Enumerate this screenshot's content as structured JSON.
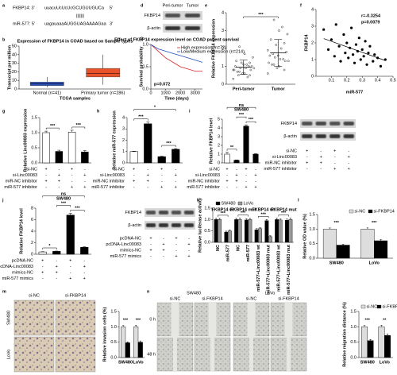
{
  "panel_labels": [
    "a",
    "b",
    "c",
    "d",
    "e",
    "f",
    "g",
    "h",
    "i",
    "j",
    "k",
    "l",
    "m",
    "n"
  ],
  "panel_a": {
    "lines": [
      {
        "label": "FKBP14: 3'",
        "sequence": "uuacuUcUcUcGCUGUUGUCa",
        "end": "5'",
        "color": "#1f5fbf"
      },
      {
        "label": "miR-577: 5'",
        "sequence": "uagauaaaAUGGUAGAAAAGaa",
        "end": "3'",
        "color": "#d2461e"
      }
    ],
    "pairing": "|||||||"
  },
  "blot_d": {
    "columns": [
      "Peri-tumor",
      "Tumor"
    ],
    "rows": [
      "FKBP14",
      "β-actin"
    ]
  },
  "blot_i": {
    "rows": [
      "FKBP14",
      "β-actin"
    ],
    "conditions": [
      {
        "name": "si-NC",
        "signs": [
          "+",
          "-",
          "+",
          "-"
        ]
      },
      {
        "name": "si-Linc00083",
        "signs": [
          "-",
          "+",
          "-",
          "+"
        ]
      },
      {
        "name": "miR-NC inhibitor",
        "signs": [
          "+",
          "+",
          "-",
          "-"
        ]
      },
      {
        "name": "miR-577 inhibitor",
        "signs": [
          "-",
          "-",
          "+",
          "+"
        ]
      }
    ]
  },
  "blot_j": {
    "rows": [
      "FKBP14",
      "β-actin"
    ],
    "conditions": [
      {
        "name": "pcDNA-NC",
        "signs": [
          "+",
          "-",
          "+",
          "-"
        ]
      },
      {
        "name": "pcDNA-Linc00083",
        "signs": [
          "-",
          "+",
          "-",
          "+"
        ]
      },
      {
        "name": "mimics-NC",
        "signs": [
          "+",
          "+",
          "-",
          "-"
        ]
      },
      {
        "name": "miR-577 mimics",
        "signs": [
          "-",
          "-",
          "+",
          "+"
        ]
      }
    ]
  },
  "panel_m": {
    "columns": [
      "si-NC",
      "si-FKBP14"
    ],
    "rows": [
      "SW480",
      "LoVo"
    ]
  },
  "panel_n": {
    "groups": [
      "SW480",
      "LoVo"
    ],
    "columns": [
      "si-NC",
      "si-FKBP14",
      "si-NC",
      "si-FKBP14"
    ],
    "rows": [
      "0 h",
      "48 h"
    ]
  },
  "chart_data": [
    {
      "type": "box",
      "title": "Expression of FKBP14 in COAD based on Sample types",
      "xlabel": "TCGA samples",
      "ylabel": "Transcript per million",
      "categories": [
        "Normal (n=41)",
        "Primary tumor (n=286)"
      ],
      "boxes": [
        {
          "min": 2,
          "q1": 4,
          "median": 6,
          "q3": 8,
          "max": 14
        },
        {
          "min": 5,
          "q1": 14,
          "median": 18,
          "q3": 24,
          "max": 40
        }
      ],
      "colors": [
        "#2a52be",
        "#e8532b"
      ],
      "ylim": [
        0,
        50
      ],
      "yticks": [
        0,
        10,
        20,
        30,
        40,
        50
      ]
    },
    {
      "type": "line",
      "title": "Effect of FKBP14 expression level on COAD patient survival",
      "xlabel": "Time (days)",
      "ylabel": "Survival probability",
      "x": [
        0,
        500,
        1000,
        1500,
        2000,
        2500,
        3000,
        3500
      ],
      "series": [
        {
          "name": "High expression (n=72)",
          "color": "#d62728",
          "values": [
            1,
            0.85,
            0.7,
            0.6,
            0.5,
            0.45,
            0.4,
            0.4
          ]
        },
        {
          "name": "Low/Medium expression (n=214)",
          "color": "#1f4fbf",
          "values": [
            1,
            0.9,
            0.85,
            0.8,
            0.75,
            0.7,
            0.65,
            0.6
          ]
        }
      ],
      "annotations": [
        "p=0.072"
      ],
      "xlim": [
        0,
        3500
      ],
      "xticks": [
        0,
        1000,
        2000,
        3000
      ],
      "ylim": [
        0,
        1
      ],
      "yticks": [
        {
          "value": 0,
          "label": "0.0"
        },
        0.5,
        {
          "value": 1,
          "label": "1.0"
        }
      ]
    },
    {
      "type": "strip",
      "ylabel": "Relative FKBP14 expression",
      "categories": [
        "Peri-tumor",
        "Tumor"
      ],
      "series": [
        {
          "name": "Peri-tumor",
          "color": "#000000",
          "values": [
            0.3,
            0.5,
            0.6,
            0.7,
            0.8,
            0.8,
            0.9,
            0.9,
            1.0,
            1.0,
            1.1,
            1.2,
            1.3,
            1.5,
            0.4,
            0.6,
            0.7,
            0.9,
            1.0,
            1.1,
            0.5,
            0.8,
            1.2,
            1.7,
            2.1
          ]
        },
        {
          "name": "Tumor",
          "color": "#000000",
          "values": [
            0.6,
            0.8,
            1.0,
            1.1,
            1.2,
            1.3,
            1.4,
            1.5,
            1.6,
            1.8,
            2.0,
            2.2,
            2.5,
            2.8,
            3.2,
            0.9,
            1.1,
            1.3,
            1.4,
            1.6,
            1.7,
            1.9,
            2.3,
            3.0,
            3.6
          ]
        }
      ],
      "means": [
        0.95,
        1.75
      ],
      "sds": [
        0.4,
        0.75
      ],
      "annotations": [
        "***"
      ],
      "ylim": [
        0,
        4
      ],
      "yticks": [
        0,
        1,
        2,
        3,
        4
      ]
    },
    {
      "type": "scatter",
      "xlabel": "miR-577",
      "ylabel": "FKBP14",
      "color": "#000000",
      "x": [
        0.05,
        0.08,
        0.1,
        0.12,
        0.13,
        0.15,
        0.16,
        0.18,
        0.19,
        0.2,
        0.21,
        0.22,
        0.23,
        0.24,
        0.25,
        0.26,
        0.27,
        0.28,
        0.29,
        0.3,
        0.31,
        0.32,
        0.33,
        0.34,
        0.35,
        0.37,
        0.38,
        0.4,
        0.42,
        0.45
      ],
      "y": [
        2.8,
        1.6,
        2.2,
        1.2,
        3.1,
        1.8,
        0.9,
        2.5,
        1.4,
        2.0,
        1.1,
        1.7,
        2.9,
        1.3,
        0.8,
        1.9,
        1.5,
        2.3,
        1.0,
        1.6,
        1.2,
        2.1,
        0.7,
        1.4,
        1.8,
        0.9,
        1.3,
        1.1,
        0.6,
        1.0
      ],
      "annotations": [
        "r=-0.3254",
        "p=0.0079"
      ],
      "xlim": [
        0,
        0.5
      ],
      "xticks": [
        0.1,
        0.2,
        0.3,
        0.4,
        0.5
      ],
      "ylim": [
        0,
        4
      ],
      "yticks": [
        0,
        1,
        2,
        3,
        4
      ]
    },
    {
      "type": "bar",
      "ylabel": "Relative Linc00083 expression",
      "values": [
        1.0,
        0.38,
        1.02,
        0.36
      ],
      "errors": [
        0.05,
        0.04,
        0.06,
        0.05
      ],
      "colors": [
        "#ffffff",
        "#000000",
        "#ffffff",
        "#000000"
      ],
      "annotations": [
        "***",
        "***"
      ],
      "conditions": [
        {
          "name": "si-NC",
          "signs": [
            "+",
            "-",
            "+",
            "-"
          ]
        },
        {
          "name": "si-Linc00083",
          "signs": [
            "-",
            "+",
            "-",
            "+"
          ]
        },
        {
          "name": "miR-NC inhibitor",
          "signs": [
            "+",
            "+",
            "-",
            "-"
          ]
        },
        {
          "name": "miR-577 inhibitor",
          "signs": [
            "-",
            "-",
            "+",
            "+"
          ]
        }
      ],
      "ylim": [
        0,
        1.5
      ],
      "yticks": [
        {
          "value": 0,
          "label": "0.0"
        },
        0.5,
        {
          "value": 1,
          "label": "1.0"
        },
        1.5
      ]
    },
    {
      "type": "bar",
      "ylabel": "Relative miR-577 expression",
      "values": [
        1.0,
        3.45,
        0.55,
        1.2
      ],
      "errors": [
        0.03,
        0.15,
        0.04,
        0.06
      ],
      "colors": [
        "#ffffff",
        "#000000",
        "#000000",
        "#000000"
      ],
      "annotations": [
        "*",
        "***",
        "***"
      ],
      "conditions": [
        {
          "name": "si-NC",
          "signs": [
            "+",
            "-",
            "+",
            "-"
          ]
        },
        {
          "name": "si-Linc00083",
          "signs": [
            "-",
            "+",
            "-",
            "+"
          ]
        },
        {
          "name": "miR-NC inhibitor",
          "signs": [
            "+",
            "+",
            "-",
            "-"
          ]
        },
        {
          "name": "miR-577 inhibitor",
          "signs": [
            "-",
            "-",
            "+",
            "+"
          ]
        }
      ],
      "ylim": [
        0,
        4
      ],
      "yticks": [
        0,
        1,
        2,
        3,
        4
      ]
    },
    {
      "type": "bar",
      "title": "SW480",
      "ylabel": "Relative FKBP14 level",
      "values": [
        1.0,
        0.3,
        4.2,
        1.0
      ],
      "errors": [
        0.2,
        0.03,
        0.15,
        0.05
      ],
      "colors": [
        "#ffffff",
        "#000000",
        "#000000",
        "#000000"
      ],
      "annotations": [
        "ns",
        "***",
        "**",
        "***"
      ],
      "conditions": [
        {
          "name": "si-NC",
          "signs": [
            "+",
            "-",
            "+",
            "-"
          ]
        },
        {
          "name": "si-Linc00083",
          "signs": [
            "-",
            "+",
            "-",
            "+"
          ]
        },
        {
          "name": "miR-NC inhibitor",
          "signs": [
            "+",
            "+",
            "-",
            "-"
          ]
        },
        {
          "name": "miR-577 inhibitor",
          "signs": [
            "-",
            "-",
            "+",
            "+"
          ]
        }
      ],
      "ylim": [
        0,
        5
      ],
      "yticks": [
        0,
        1,
        2,
        3,
        4,
        5
      ]
    },
    {
      "type": "bar",
      "title": "SW480",
      "ylabel": "Relative FKBP14 level",
      "values": [
        0.4,
        0.5,
        6.8,
        1.2
      ],
      "errors": [
        0.05,
        0.05,
        0.3,
        0.1
      ],
      "colors": [
        "#ffffff",
        "#000000",
        "#000000",
        "#000000"
      ],
      "annotations": [
        "ns",
        "***",
        "*",
        "***"
      ],
      "conditions": [
        {
          "name": "pcDNA-NC",
          "signs": [
            "+",
            "-",
            "+",
            "-"
          ]
        },
        {
          "name": "pcDNA-Linc00083",
          "signs": [
            "-",
            "+",
            "-",
            "+"
          ]
        },
        {
          "name": "mimics-NC",
          "signs": [
            "+",
            "+",
            "-",
            "-"
          ]
        },
        {
          "name": "miR-577 mimics",
          "signs": [
            "-",
            "-",
            "+",
            "+"
          ]
        }
      ],
      "ylim": [
        0,
        8
      ],
      "yticks": [
        0,
        2,
        4,
        6,
        8
      ]
    },
    {
      "type": "grouped",
      "ylabel": "Relative luciferase activity",
      "legend": true,
      "groups": [
        "FKBP14 wt",
        "FKBP14 mut",
        "FKBP14 wt",
        "FKBP14 mut"
      ],
      "categories": [
        "NC",
        "miR-577",
        "NC",
        "miR-577",
        "miR-577+Linc00083 wt",
        "miR-577+Linc00083 mut",
        "miR-577+Linc00083 wt",
        "miR-577+Linc00083 mut"
      ],
      "series": [
        {
          "name": "SW480",
          "color": "#000000",
          "values": [
            1.0,
            0.45,
            1.0,
            0.98,
            0.55,
            0.95,
            1.0,
            0.97
          ],
          "errors": [
            0.05,
            0.04,
            0.05,
            0.06,
            0.05,
            0.05,
            0.06,
            0.05
          ]
        },
        {
          "name": "LoVo",
          "color": "#9a9a9a",
          "values": [
            1.0,
            0.5,
            1.0,
            1.0,
            0.6,
            0.25,
            0.98,
            1.0
          ],
          "errors": [
            0.05,
            0.05,
            0.06,
            0.05,
            0.05,
            0.04,
            0.05,
            0.06
          ]
        }
      ],
      "annotations": [
        "***",
        "***",
        "***",
        "***"
      ],
      "ylim": [
        0,
        1.5
      ],
      "yticks": [
        {
          "value": 0,
          "label": "0.0"
        },
        0.5,
        {
          "value": 1,
          "label": "1.0"
        },
        1.5
      ]
    },
    {
      "type": "grouped",
      "ylabel": "Relative OD value (%)",
      "legend": true,
      "categories": [
        "SW480",
        "LoVo"
      ],
      "series": [
        {
          "name": "si-NC",
          "color": "#dddddd",
          "values": [
            1.0,
            1.0
          ],
          "errors": [
            0.04,
            0.04
          ]
        },
        {
          "name": "si-FKBP14",
          "color": "#000000",
          "values": [
            0.45,
            0.6
          ],
          "errors": [
            0.03,
            0.04
          ]
        }
      ],
      "annotations": [
        "***",
        "***"
      ],
      "ylim": [
        0,
        1.5
      ],
      "yticks": [
        {
          "value": 0,
          "label": "0.0"
        },
        0.5,
        {
          "value": 1,
          "label": "1.0"
        },
        1.5
      ]
    },
    {
      "type": "grouped",
      "ylabel": "Relative invasion cells (%)",
      "legend": false,
      "categories": [
        "SW480",
        "LoVo"
      ],
      "series": [
        {
          "name": "si-NC",
          "color": "#dddddd",
          "values": [
            1.0,
            1.0
          ],
          "errors": [
            0.04,
            0.05
          ]
        },
        {
          "name": "si-FKBP14",
          "color": "#000000",
          "values": [
            0.48,
            0.5
          ],
          "errors": [
            0.03,
            0.04
          ]
        }
      ],
      "annotations": [
        "***",
        "***"
      ],
      "ylim": [
        0,
        1.5
      ],
      "yticks": [
        {
          "value": 0,
          "label": "0.0"
        },
        0.5,
        {
          "value": 1,
          "label": "1.0"
        },
        1.5
      ]
    },
    {
      "type": "grouped",
      "ylabel": "Relative migration distance (%)",
      "legend": true,
      "categories": [
        "SW480",
        "LoVo"
      ],
      "series": [
        {
          "name": "si-NC",
          "color": "#dddddd",
          "values": [
            1.0,
            1.0
          ],
          "errors": [
            0.04,
            0.05
          ]
        },
        {
          "name": "si-FKBP14",
          "color": "#000000",
          "values": [
            0.55,
            0.72
          ],
          "errors": [
            0.04,
            0.05
          ]
        }
      ],
      "annotations": [
        "***",
        "**"
      ],
      "ylim": [
        0,
        1.5
      ],
      "yticks": [
        {
          "value": 0,
          "label": "0.0"
        },
        0.5,
        {
          "value": 1,
          "label": "1.0"
        },
        1.5
      ]
    }
  ]
}
